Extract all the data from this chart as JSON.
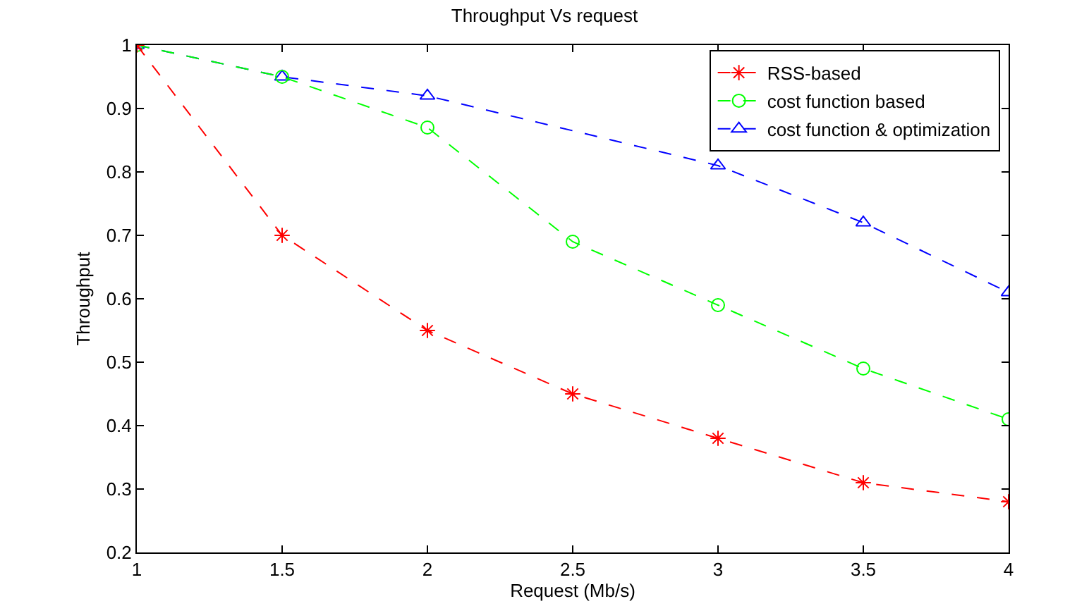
{
  "chart_data": {
    "type": "line",
    "title": "Throughput Vs request",
    "xlabel": "Request (Mb/s)",
    "ylabel": "Throughput",
    "x": [
      1,
      1.5,
      2,
      2.5,
      3,
      3.5,
      4
    ],
    "series": [
      {
        "name": "RSS-based",
        "color": "#ff0000",
        "marker": "cross",
        "values": [
          1,
          0.7,
          0.55,
          0.45,
          0.38,
          0.31,
          0.28
        ]
      },
      {
        "name": "cost function based",
        "color": "#00ff00",
        "marker": "circle",
        "values": [
          1,
          0.95,
          0.87,
          0.69,
          0.59,
          0.49,
          0.41
        ]
      },
      {
        "name": "cost function & optimization",
        "color": "#0000ff",
        "marker": "triangle",
        "values": [
          1,
          0.95,
          0.92,
          null,
          0.81,
          0.72,
          0.61
        ]
      }
    ],
    "xlim": [
      1,
      4
    ],
    "xticks": [
      1,
      1.5,
      2,
      2.5,
      3,
      3.5,
      4
    ],
    "ylim": [
      0.2,
      1
    ],
    "yticks": [
      0.2,
      0.3,
      0.4,
      0.5,
      0.6,
      0.7,
      0.8,
      0.9,
      1
    ],
    "grid": false,
    "legend": "top right",
    "line_style": "dashed"
  }
}
